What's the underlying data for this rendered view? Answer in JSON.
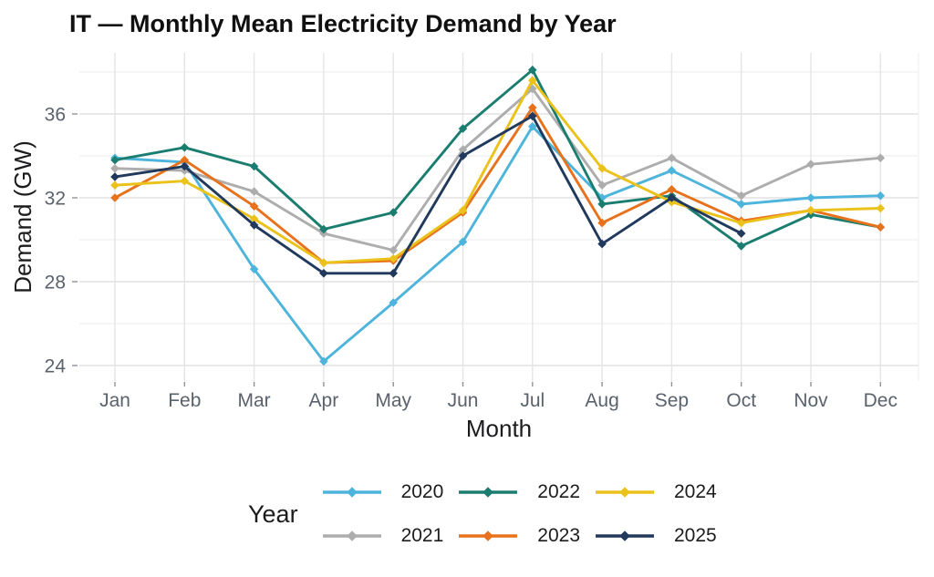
{
  "title": "IT — Monthly Mean Electricity Demand by Year",
  "chart_data": {
    "type": "line",
    "title": "IT — Monthly Mean Electricity Demand by Year",
    "x": [
      "Jan",
      "Feb",
      "Mar",
      "Apr",
      "May",
      "Jun",
      "Jul",
      "Aug",
      "Sep",
      "Oct",
      "Nov",
      "Dec"
    ],
    "xlabel": "Month",
    "ylabel": "Demand (GW)",
    "ylim": [
      23.3,
      38.9
    ],
    "yticks": [
      24,
      28,
      32,
      36
    ],
    "yticks_minor": [
      26,
      30,
      34,
      38
    ],
    "grid": "horizontal major+minor light gray, vertical at each month, white background",
    "marker": "diamond",
    "legend_title": "Year",
    "legend_position": "bottom",
    "legend_rows": [
      [
        "2020",
        "2022",
        "2024"
      ],
      [
        "2021",
        "2023",
        "2025"
      ]
    ],
    "series": [
      {
        "name": "2020",
        "color": "#4DB4DB",
        "values": [
          33.9,
          33.7,
          28.6,
          24.2,
          27.0,
          29.9,
          35.4,
          32.0,
          33.3,
          31.7,
          32.0,
          32.1
        ]
      },
      {
        "name": "2021",
        "color": "#ADADAD",
        "values": [
          33.4,
          33.3,
          32.3,
          30.3,
          29.5,
          34.3,
          37.2,
          32.6,
          33.9,
          32.1,
          33.6,
          33.9
        ]
      },
      {
        "name": "2022",
        "color": "#1A7D70",
        "values": [
          33.8,
          34.4,
          33.5,
          30.5,
          31.3,
          35.3,
          38.1,
          31.7,
          32.1,
          29.7,
          31.2,
          30.6
        ]
      },
      {
        "name": "2023",
        "color": "#E8721C",
        "values": [
          32.0,
          33.8,
          31.6,
          28.9,
          29.0,
          31.3,
          36.3,
          30.8,
          32.4,
          30.9,
          31.4,
          30.6
        ]
      },
      {
        "name": "2024",
        "color": "#EBC21A",
        "values": [
          32.6,
          32.8,
          31.0,
          28.9,
          29.1,
          31.4,
          37.6,
          33.4,
          31.8,
          30.8,
          31.4,
          31.5
        ]
      },
      {
        "name": "2025",
        "color": "#20395C",
        "values": [
          33.0,
          33.5,
          30.7,
          28.4,
          28.4,
          34.0,
          35.9,
          29.8,
          32.0,
          30.3,
          null,
          null
        ]
      }
    ]
  }
}
